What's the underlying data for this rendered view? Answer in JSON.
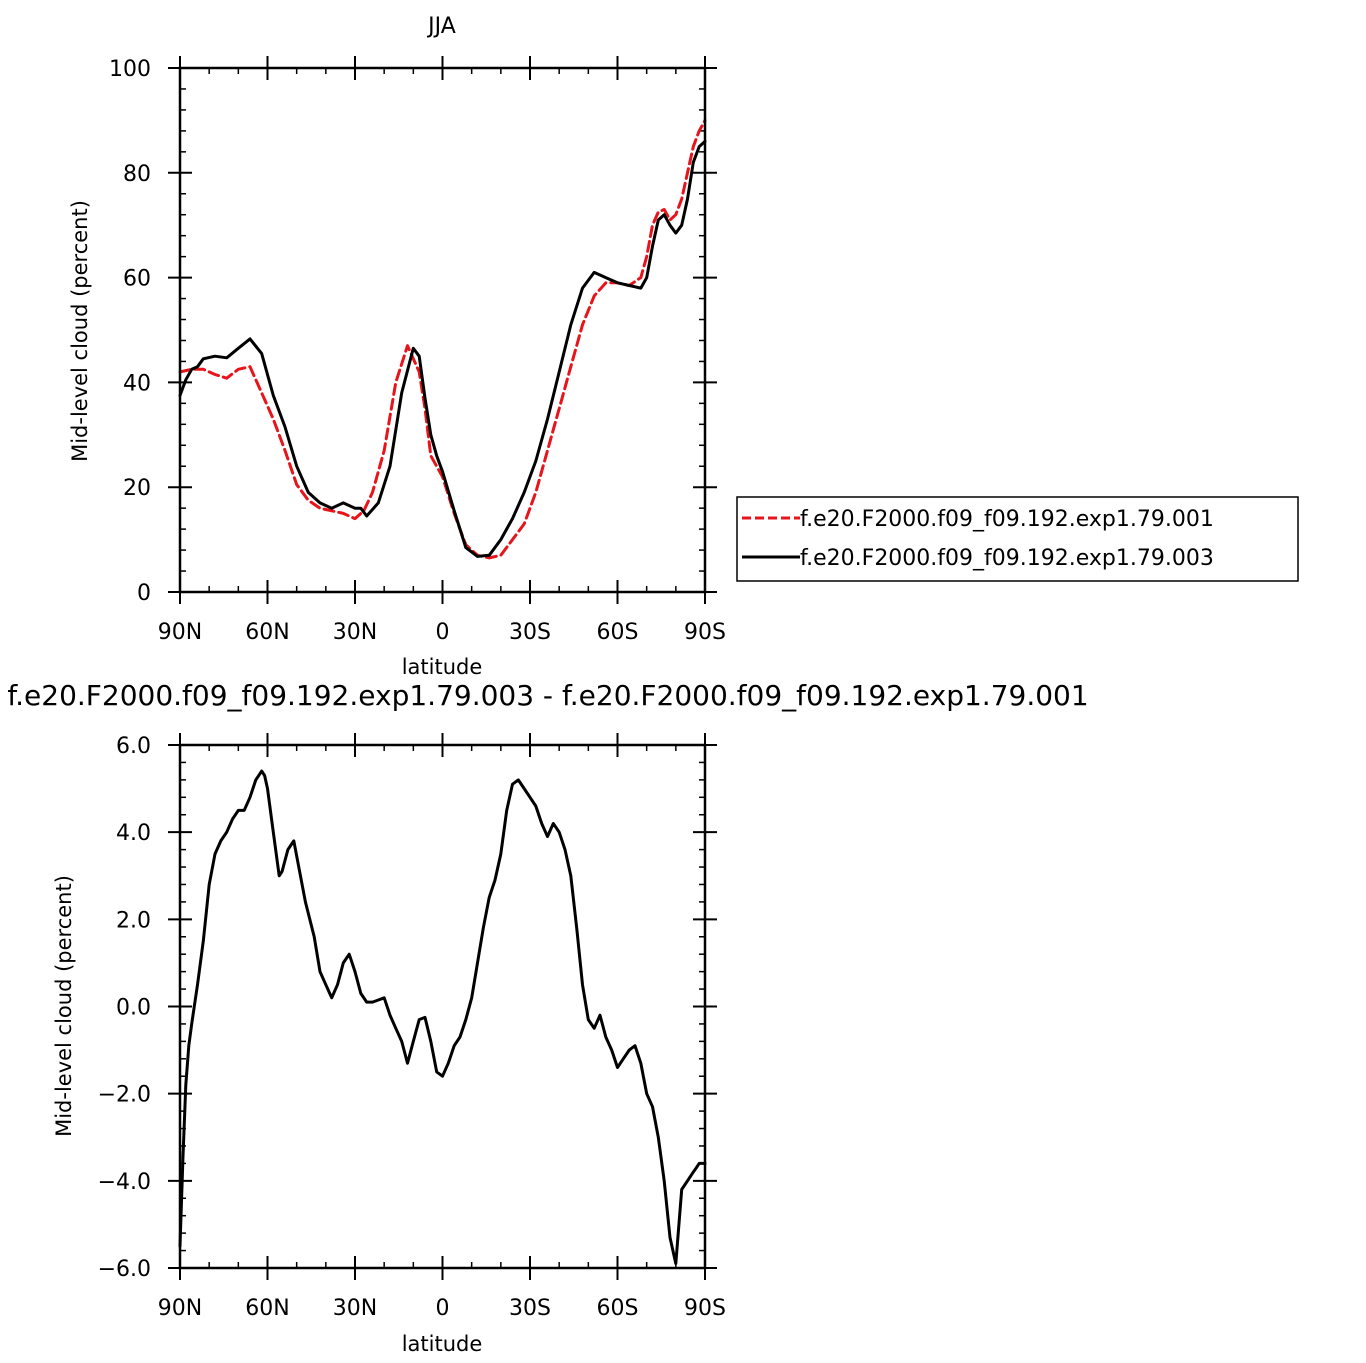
{
  "chart_data": [
    {
      "type": "line",
      "title": "JJA",
      "xlabel": "latitude",
      "ylabel": "Mid-level cloud (percent)",
      "xlim": [
        90,
        -90
      ],
      "ylim": [
        0,
        100
      ],
      "x_ticks": [
        90,
        60,
        30,
        0,
        -30,
        -60,
        -90
      ],
      "x_tick_labels": [
        "90N",
        "60N",
        "30N",
        "0",
        "30S",
        "60S",
        "90S"
      ],
      "y_ticks": [
        0,
        20,
        40,
        60,
        80,
        100
      ],
      "y_tick_labels": [
        "0",
        "20",
        "40",
        "60",
        "80",
        "100"
      ],
      "grid": false,
      "legend_position": "right",
      "series": [
        {
          "name": "f.e20.F2000.f09_f09.192.exp1.79.001",
          "color": "#e8141b",
          "dash": "dashed",
          "x": [
            90,
            86,
            82,
            78,
            74,
            70,
            66,
            62,
            58,
            54,
            50,
            46,
            42,
            38,
            34,
            30,
            27,
            24,
            20,
            16,
            12,
            8,
            6,
            4,
            0,
            -4,
            -8,
            -12,
            -16,
            -20,
            -24,
            -28,
            -32,
            -36,
            -40,
            -44,
            -48,
            -52,
            -56,
            -60,
            -64,
            -68,
            -70,
            -72,
            -74,
            -76,
            -78,
            -80,
            -82,
            -84,
            -86,
            -88,
            -90
          ],
          "y": [
            42,
            42.5,
            42.5,
            41.5,
            40.8,
            42.5,
            43,
            38,
            33,
            27,
            20.5,
            17.5,
            16,
            15.5,
            15,
            14,
            15.5,
            19,
            27,
            40,
            47,
            42,
            35,
            26,
            22,
            15,
            9,
            7,
            6.5,
            7,
            10,
            13,
            19,
            27,
            35,
            43,
            51,
            56.5,
            59,
            59,
            58.5,
            60,
            64,
            70,
            72.5,
            73,
            71,
            72,
            75,
            80,
            85,
            88,
            90
          ]
        },
        {
          "name": "f.e20.F2000.f09_f09.192.exp1.79.003",
          "color": "#000000",
          "dash": "solid",
          "x": [
            90,
            88,
            86,
            84,
            82,
            78,
            74,
            70,
            66,
            62,
            58,
            54,
            50,
            46,
            42,
            38,
            34,
            30,
            28,
            26,
            22,
            18,
            14,
            10,
            8,
            6,
            4,
            2,
            0,
            -4,
            -8,
            -12,
            -16,
            -20,
            -24,
            -28,
            -32,
            -36,
            -40,
            -44,
            -48,
            -52,
            -56,
            -60,
            -64,
            -68,
            -70,
            -72,
            -74,
            -76,
            -78,
            -80,
            -82,
            -84,
            -86,
            -88,
            -90
          ],
          "y": [
            37.5,
            40.5,
            42.5,
            43,
            44.5,
            45,
            44.7,
            46.5,
            48.3,
            45.5,
            37.5,
            31.5,
            24,
            19,
            17,
            16,
            17,
            16,
            16,
            14.5,
            17,
            24,
            38,
            46.5,
            45,
            37,
            30,
            26,
            23,
            15.5,
            8.5,
            6.8,
            7,
            10,
            14,
            19,
            25,
            33,
            42,
            51,
            58,
            61,
            60,
            59,
            58.5,
            58,
            60,
            66,
            71,
            72,
            70,
            68.5,
            70,
            75,
            82,
            85,
            86
          ]
        }
      ]
    },
    {
      "type": "line",
      "title": "f.e20.F2000.f09_f09.192.exp1.79.003 - f.e20.F2000.f09_f09.192.exp1.79.001",
      "xlabel": "latitude",
      "ylabel": "Mid-level cloud (percent)",
      "xlim": [
        90,
        -90
      ],
      "ylim": [
        -6,
        6
      ],
      "x_ticks": [
        90,
        60,
        30,
        0,
        -30,
        -60,
        -90
      ],
      "x_tick_labels": [
        "90N",
        "60N",
        "30N",
        "0",
        "30S",
        "60S",
        "90S"
      ],
      "y_ticks": [
        -6,
        -4,
        -2,
        0,
        2,
        4,
        6
      ],
      "y_tick_labels": [
        "−6.0",
        "−4.0",
        "−2.0",
        "0.0",
        "2.0",
        "4.0",
        "6.0"
      ],
      "grid": false,
      "series": [
        {
          "color": "#000000",
          "dash": "solid",
          "x": [
            90,
            89,
            88,
            87,
            86,
            84,
            82,
            80,
            78,
            76,
            74,
            72,
            70,
            68,
            66,
            64,
            62,
            61,
            60,
            58,
            56,
            55,
            53,
            51,
            49,
            47,
            44,
            42,
            40,
            38,
            36,
            34,
            32,
            30,
            28,
            26,
            24,
            22,
            20,
            18,
            16,
            14,
            12,
            10,
            8,
            6,
            4,
            2,
            0,
            -2,
            -4,
            -6,
            -8,
            -10,
            -12,
            -14,
            -16,
            -18,
            -20,
            -22,
            -24,
            -26,
            -28,
            -30,
            -32,
            -34,
            -36,
            -38,
            -40,
            -42,
            -44,
            -46,
            -48,
            -50,
            -52,
            -54,
            -56,
            -58,
            -60,
            -62,
            -64,
            -66,
            -68,
            -70,
            -72,
            -74,
            -76,
            -78,
            -80,
            -82,
            -84,
            -86,
            -87,
            -88,
            -89,
            -90
          ],
          "y": [
            -5.5,
            -3.5,
            -1.8,
            -0.9,
            -0.4,
            0.5,
            1.5,
            2.8,
            3.5,
            3.8,
            4.0,
            4.3,
            4.5,
            4.5,
            4.8,
            5.2,
            5.4,
            5.3,
            5.0,
            4.0,
            3.0,
            3.1,
            3.6,
            3.8,
            3.1,
            2.4,
            1.6,
            0.8,
            0.5,
            0.2,
            0.5,
            1.0,
            1.2,
            0.8,
            0.3,
            0.1,
            0.1,
            0.15,
            0.2,
            -0.2,
            -0.5,
            -0.8,
            -1.3,
            -0.8,
            -0.3,
            -0.25,
            -0.8,
            -1.5,
            -1.6,
            -1.3,
            -0.9,
            -0.7,
            -0.3,
            0.2,
            1.0,
            1.8,
            2.5,
            2.9,
            3.5,
            4.5,
            5.1,
            5.2,
            5.0,
            4.8,
            4.6,
            4.2,
            3.9,
            4.2,
            4.0,
            3.6,
            3.0,
            1.8,
            0.5,
            -0.3,
            -0.5,
            -0.2,
            -0.7,
            -1.0,
            -1.4,
            -1.2,
            -1.0,
            -0.9,
            -1.3,
            -2.0,
            -2.3,
            -3.0,
            -4.0,
            -5.3,
            -5.9,
            -4.2,
            -4.0,
            -3.8,
            -3.7,
            -3.6,
            -3.6,
            -3.6
          ]
        }
      ]
    }
  ]
}
